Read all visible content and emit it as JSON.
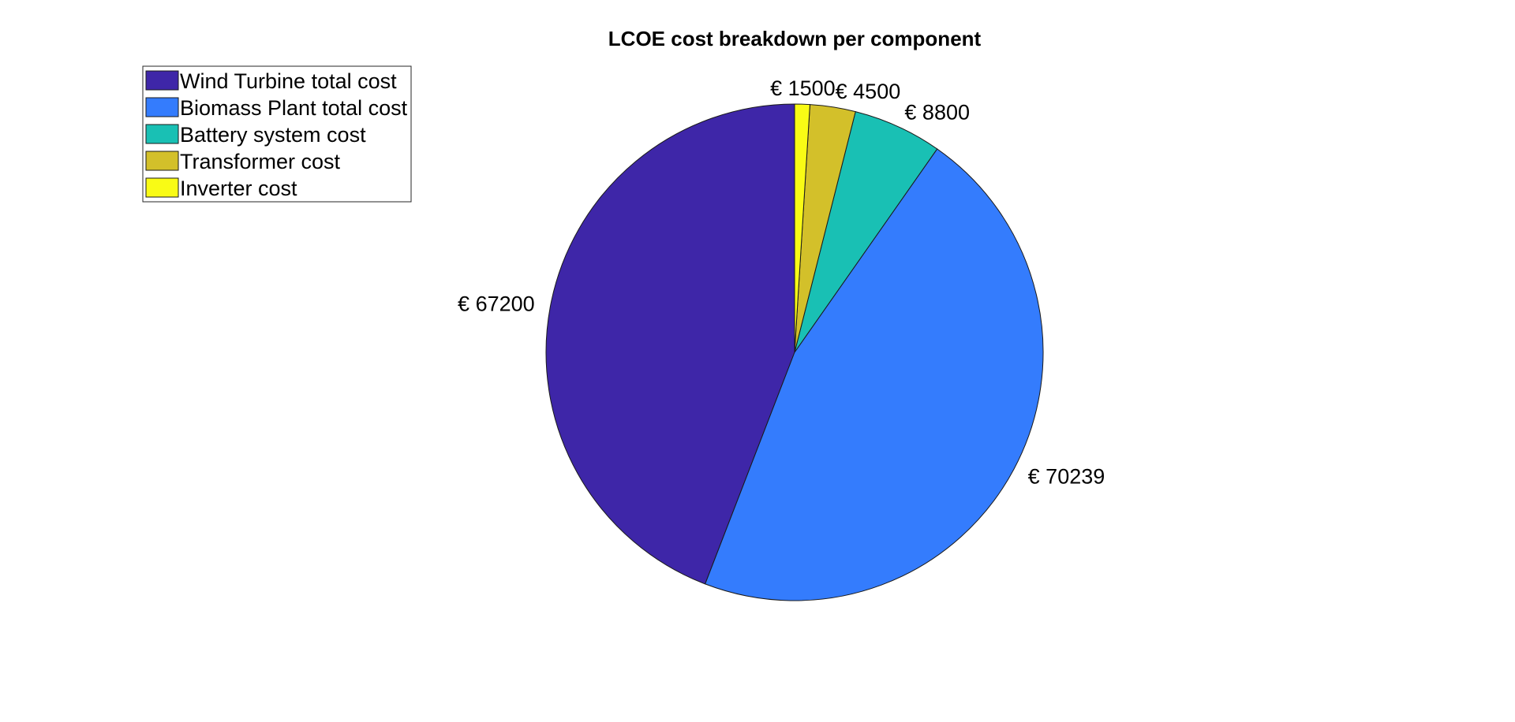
{
  "chart_data": {
    "type": "pie",
    "title": "LCOE cost breakdown per component",
    "slices": [
      {
        "name": "Wind Turbine total cost",
        "value": 67200,
        "label": "€ 67200",
        "color": "#3E26A8"
      },
      {
        "name": "Biomass Plant total cost",
        "value": 70239,
        "label": "€ 70239",
        "color": "#347CFD"
      },
      {
        "name": "Battery system cost",
        "value": 8800,
        "label": "€ 8800",
        "color": "#19C0B4"
      },
      {
        "name": "Transformer cost",
        "value": 4500,
        "label": "€ 4500",
        "color": "#D3C02A"
      },
      {
        "name": "Inverter cost",
        "value": 1500,
        "label": "€ 1500",
        "color": "#F9FB15"
      }
    ],
    "legend_position": "top-left",
    "direction": "counterclockwise from top"
  }
}
